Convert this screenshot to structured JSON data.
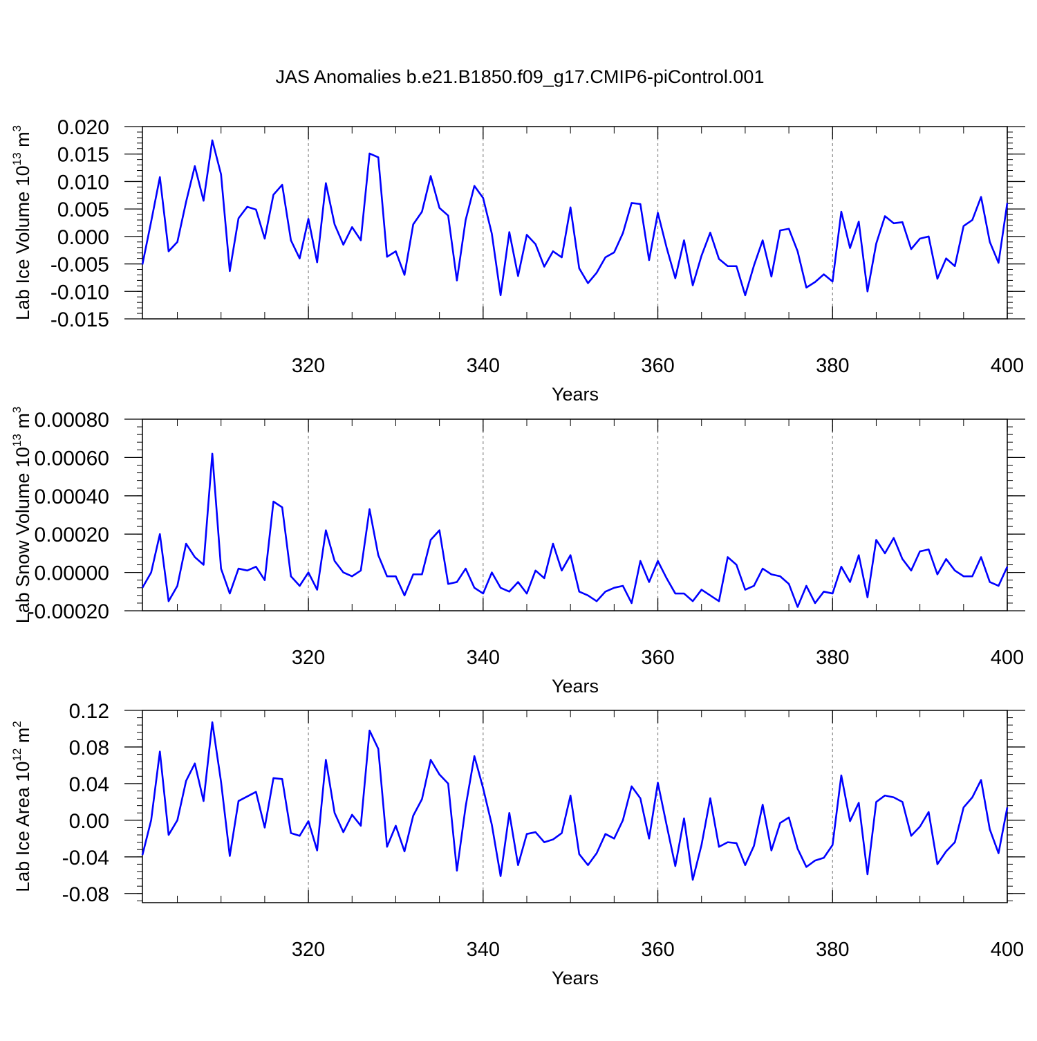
{
  "title": "JAS Anomalies b.e21.B1850.f09_g17.CMIP6-piControl.001",
  "colors": {
    "line": "#0000ff",
    "axis": "#000000",
    "grid": "#888888"
  },
  "chart_data": [
    {
      "type": "line",
      "ylabel_main": "Lab Ice Volume 10",
      "ylabel_sup": "13",
      "ylabel_unit": " m",
      "ylabel_unit_sup": "3",
      "xlabel": "Years",
      "xlim": [
        301,
        400
      ],
      "ylim": [
        -0.015,
        0.02
      ],
      "xticks": [
        320,
        340,
        360,
        380,
        400
      ],
      "xtick_labels": [
        "320",
        "340",
        "360",
        "380",
        "400"
      ],
      "yticks": [
        -0.015,
        -0.01,
        -0.005,
        0.0,
        0.005,
        0.01,
        0.015,
        0.02
      ],
      "ytick_labels": [
        "-0.015",
        "-0.010",
        "-0.005",
        "0.000",
        "0.005",
        "0.010",
        "0.015",
        "0.020"
      ],
      "grid_x": [
        320,
        340,
        360,
        380
      ],
      "values": [
        -0.0051,
        0.0027,
        0.0108,
        -0.0027,
        -0.001,
        0.0063,
        0.0128,
        0.0065,
        0.0175,
        0.0113,
        -0.0063,
        0.0033,
        0.0054,
        0.0049,
        -0.0004,
        0.0076,
        0.0094,
        -0.0007,
        -0.004,
        0.0032,
        -0.0047,
        0.0097,
        0.0022,
        -0.0015,
        0.0017,
        -0.0007,
        0.0151,
        0.0144,
        -0.0037,
        -0.0027,
        -0.007,
        0.0022,
        0.0045,
        0.011,
        0.0052,
        0.0038,
        -0.008,
        0.003,
        0.0092,
        0.007,
        0.0005,
        -0.0107,
        0.0008,
        -0.0072,
        0.0003,
        -0.0014,
        -0.0055,
        -0.0027,
        -0.0038,
        0.0053,
        -0.0058,
        -0.0085,
        -0.0066,
        -0.0038,
        -0.0029,
        0.0006,
        0.0061,
        0.0059,
        -0.0043,
        0.0043,
        -0.002,
        -0.0076,
        -0.0007,
        -0.0089,
        -0.0035,
        0.0007,
        -0.0041,
        -0.0054,
        -0.0054,
        -0.0107,
        -0.0053,
        -0.0007,
        -0.0073,
        0.0011,
        0.0014,
        -0.0027,
        -0.0093,
        -0.0083,
        -0.0069,
        -0.0082,
        0.0045,
        -0.0021,
        0.0027,
        -0.01,
        -0.0013,
        0.0037,
        0.0024,
        0.0026,
        -0.0023,
        -0.0004,
        0.0,
        -0.0077,
        -0.004,
        -0.0054,
        0.0019,
        0.003,
        0.0072,
        -0.001,
        -0.0048,
        0.0061
      ]
    },
    {
      "type": "line",
      "ylabel_main": "Lab Snow Volume 10",
      "ylabel_sup": "13",
      "ylabel_unit": " m",
      "ylabel_unit_sup": "3",
      "xlabel": "Years",
      "xlim": [
        301,
        400
      ],
      "ylim": [
        -0.0002,
        0.0008
      ],
      "xticks": [
        320,
        340,
        360,
        380,
        400
      ],
      "xtick_labels": [
        "320",
        "340",
        "360",
        "380",
        "400"
      ],
      "yticks": [
        -0.0002,
        0.0,
        0.0002,
        0.0004,
        0.0006,
        0.0008
      ],
      "ytick_labels": [
        "-0.00020",
        "0.00000",
        "0.00020",
        "0.00040",
        "0.00060",
        "0.00080"
      ],
      "grid_x": [
        320,
        340,
        360,
        380
      ],
      "values": [
        -8e-05,
        0.0,
        0.0002,
        -0.00015,
        -7e-05,
        0.00015,
        8e-05,
        4e-05,
        0.00062,
        2e-05,
        -0.00011,
        2e-05,
        1e-05,
        3e-05,
        -4e-05,
        0.00037,
        0.00034,
        -2e-05,
        -7e-05,
        0.0,
        -9e-05,
        0.00022,
        6e-05,
        0.0,
        -2e-05,
        1e-05,
        0.00033,
        9e-05,
        -2e-05,
        -2e-05,
        -0.00012,
        -1e-05,
        -1e-05,
        0.00017,
        0.00022,
        -6e-05,
        -5e-05,
        2e-05,
        -8e-05,
        -0.00011,
        0.0,
        -8e-05,
        -0.0001,
        -5e-05,
        -0.00011,
        1e-05,
        -3e-05,
        0.00015,
        1e-05,
        9e-05,
        -0.0001,
        -0.00012,
        -0.00015,
        -0.0001,
        -8e-05,
        -7e-05,
        -0.00016,
        6e-05,
        -5e-05,
        6e-05,
        -3e-05,
        -0.00011,
        -0.00011,
        -0.00015,
        -9e-05,
        -0.00012,
        -0.00015,
        8e-05,
        4e-05,
        -9e-05,
        -7e-05,
        2e-05,
        -1e-05,
        -2e-05,
        -6e-05,
        -0.00018,
        -7e-05,
        -0.00016,
        -0.0001,
        -0.00011,
        3e-05,
        -5e-05,
        9e-05,
        -0.00013,
        0.00017,
        0.0001,
        0.00018,
        7e-05,
        1e-05,
        0.00011,
        0.00012,
        -1e-05,
        7e-05,
        1e-05,
        -2e-05,
        -2e-05,
        8e-05,
        -5e-05,
        -7e-05,
        3e-05
      ]
    },
    {
      "type": "line",
      "ylabel_main": "Lab Ice Area 10",
      "ylabel_sup": "12",
      "ylabel_unit": " m",
      "ylabel_unit_sup": "2",
      "xlabel": "Years",
      "xlim": [
        301,
        400
      ],
      "ylim": [
        -0.09,
        0.12
      ],
      "xticks": [
        320,
        340,
        360,
        380,
        400
      ],
      "xtick_labels": [
        "320",
        "340",
        "360",
        "380",
        "400"
      ],
      "yticks": [
        -0.08,
        -0.04,
        0.0,
        0.04,
        0.08,
        0.12
      ],
      "ytick_labels": [
        "-0.08",
        "-0.04",
        "0.00",
        "0.04",
        "0.08",
        "0.12"
      ],
      "grid_x": [
        320,
        340,
        360,
        380
      ],
      "values": [
        -0.038,
        0.0,
        0.075,
        -0.016,
        0.0,
        0.043,
        0.062,
        0.021,
        0.107,
        0.042,
        -0.039,
        0.021,
        0.026,
        0.031,
        -0.008,
        0.046,
        0.045,
        -0.014,
        -0.017,
        -0.001,
        -0.033,
        0.066,
        0.008,
        -0.013,
        0.006,
        -0.006,
        0.098,
        0.078,
        -0.029,
        -0.006,
        -0.034,
        0.005,
        0.023,
        0.066,
        0.05,
        0.04,
        -0.055,
        0.015,
        0.07,
        0.035,
        -0.005,
        -0.061,
        0.008,
        -0.049,
        -0.015,
        -0.013,
        -0.024,
        -0.021,
        -0.014,
        0.027,
        -0.037,
        -0.049,
        -0.036,
        -0.015,
        -0.02,
        0.0,
        0.037,
        0.024,
        -0.02,
        0.041,
        -0.005,
        -0.05,
        0.002,
        -0.065,
        -0.027,
        0.024,
        -0.029,
        -0.024,
        -0.025,
        -0.049,
        -0.028,
        0.017,
        -0.033,
        -0.003,
        0.003,
        -0.031,
        -0.051,
        -0.044,
        -0.041,
        -0.027,
        0.049,
        -0.001,
        0.019,
        -0.059,
        0.02,
        0.027,
        0.025,
        0.02,
        -0.017,
        -0.007,
        0.009,
        -0.048,
        -0.034,
        -0.024,
        0.014,
        0.025,
        0.044,
        -0.01,
        -0.036,
        0.014
      ]
    }
  ]
}
